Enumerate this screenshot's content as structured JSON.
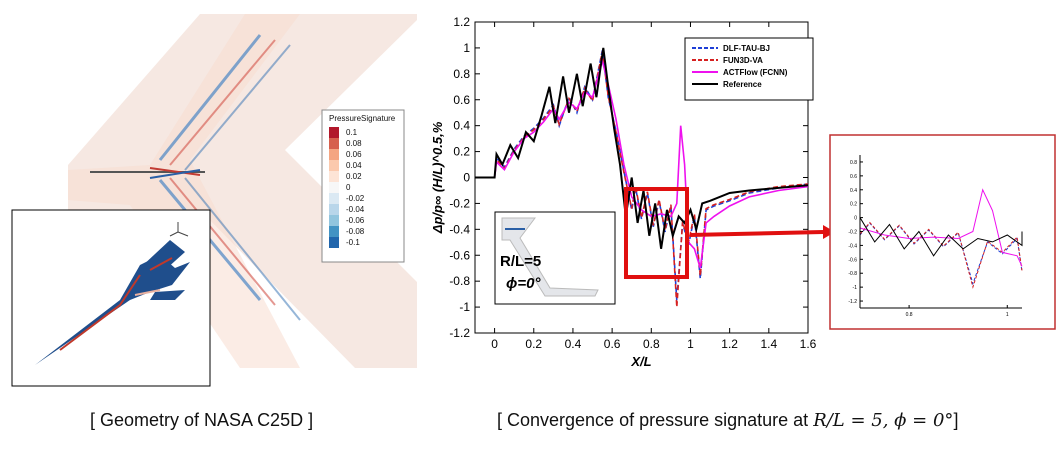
{
  "captions": {
    "left": "[ Geometry of NASA C25D ]",
    "right_prefix": "[ Convergence of pressure signature at ",
    "right_math": "R/L = 5, ϕ = 0°",
    "right_suffix": "]"
  },
  "contour_legend": {
    "title": "PressureSignature",
    "levels": [
      "0.1",
      "0.08",
      "0.06",
      "0.04",
      "0.02",
      "0",
      "-0.02",
      "-0.04",
      "-0.06",
      "-0.08",
      "-0.1"
    ],
    "colors": [
      "#b2182b",
      "#d6604d",
      "#f4a582",
      "#fbc9ad",
      "#fde4d6",
      "#f7f7f7",
      "#dbe9f3",
      "#b9d6ea",
      "#92c5de",
      "#4393c3",
      "#2166ac"
    ]
  },
  "inset_labels": {
    "rl": "R/L=5",
    "phi": "ϕ=0°"
  },
  "chart_data": [
    {
      "type": "line",
      "xlabel": "X/L",
      "ylabel": "Δp/p∞ (H/L)^0.5,%",
      "xlim": [
        -0.1,
        1.6
      ],
      "ylim": [
        -1.2,
        1.2
      ],
      "xticks": [
        "0",
        "0.2",
        "0.4",
        "0.6",
        "0.8",
        "1",
        "1.2",
        "1.4",
        "1.6"
      ],
      "yticks": [
        "1.2",
        "1",
        "0.8",
        "0.6",
        "0.4",
        "0.2",
        "0",
        "-0.2",
        "-0.4",
        "-0.6",
        "-0.8",
        "-1",
        "-1.2"
      ],
      "legend_position": "top-right",
      "series": [
        {
          "name": "DLF-TAU-BJ",
          "color": "#1f3fd6",
          "dash": "5,3",
          "points": [
            [
              -0.1,
              0
            ],
            [
              0,
              0
            ],
            [
              0.01,
              0.15
            ],
            [
              0.05,
              0.08
            ],
            [
              0.1,
              0.22
            ],
            [
              0.15,
              0.32
            ],
            [
              0.2,
              0.38
            ],
            [
              0.25,
              0.46
            ],
            [
              0.3,
              0.56
            ],
            [
              0.33,
              0.4
            ],
            [
              0.38,
              0.62
            ],
            [
              0.42,
              0.5
            ],
            [
              0.46,
              0.7
            ],
            [
              0.5,
              0.6
            ],
            [
              0.55,
              0.98
            ],
            [
              0.58,
              0.62
            ],
            [
              0.62,
              0.36
            ],
            [
              0.66,
              0.05
            ],
            [
              0.7,
              -0.25
            ],
            [
              0.72,
              -0.08
            ],
            [
              0.75,
              -0.32
            ],
            [
              0.78,
              -0.12
            ],
            [
              0.81,
              -0.38
            ],
            [
              0.84,
              -0.18
            ],
            [
              0.87,
              -0.42
            ],
            [
              0.9,
              -0.22
            ],
            [
              0.93,
              -0.95
            ],
            [
              0.96,
              -0.35
            ],
            [
              0.99,
              -0.52
            ],
            [
              1.02,
              -0.3
            ],
            [
              1.05,
              -0.78
            ],
            [
              1.08,
              -0.25
            ],
            [
              1.12,
              -0.22
            ],
            [
              1.2,
              -0.18
            ],
            [
              1.3,
              -0.12
            ],
            [
              1.45,
              -0.08
            ],
            [
              1.6,
              -0.05
            ]
          ]
        },
        {
          "name": "FUN3D-VA",
          "color": "#d62020",
          "dash": "5,3",
          "points": [
            [
              -0.1,
              0
            ],
            [
              0,
              0
            ],
            [
              0.01,
              0.14
            ],
            [
              0.05,
              0.07
            ],
            [
              0.1,
              0.21
            ],
            [
              0.15,
              0.31
            ],
            [
              0.2,
              0.37
            ],
            [
              0.25,
              0.45
            ],
            [
              0.3,
              0.55
            ],
            [
              0.33,
              0.41
            ],
            [
              0.38,
              0.61
            ],
            [
              0.42,
              0.51
            ],
            [
              0.46,
              0.69
            ],
            [
              0.5,
              0.59
            ],
            [
              0.55,
              0.97
            ],
            [
              0.58,
              0.63
            ],
            [
              0.62,
              0.35
            ],
            [
              0.66,
              0.04
            ],
            [
              0.7,
              -0.24
            ],
            [
              0.72,
              -0.07
            ],
            [
              0.75,
              -0.31
            ],
            [
              0.78,
              -0.11
            ],
            [
              0.81,
              -0.37
            ],
            [
              0.84,
              -0.17
            ],
            [
              0.87,
              -0.41
            ],
            [
              0.9,
              -0.21
            ],
            [
              0.93,
              -1.0
            ],
            [
              0.96,
              -0.34
            ],
            [
              0.99,
              -0.5
            ],
            [
              1.02,
              -0.28
            ],
            [
              1.05,
              -0.76
            ],
            [
              1.08,
              -0.24
            ],
            [
              1.12,
              -0.21
            ],
            [
              1.2,
              -0.17
            ],
            [
              1.3,
              -0.11
            ],
            [
              1.45,
              -0.07
            ],
            [
              1.6,
              -0.05
            ]
          ]
        },
        {
          "name": "ACTFlow (FCNN)",
          "color": "#ee11ee",
          "dash": "",
          "points": [
            [
              -0.1,
              0
            ],
            [
              0,
              0
            ],
            [
              0.01,
              0.12
            ],
            [
              0.05,
              0.06
            ],
            [
              0.1,
              0.2
            ],
            [
              0.15,
              0.3
            ],
            [
              0.2,
              0.35
            ],
            [
              0.25,
              0.43
            ],
            [
              0.3,
              0.53
            ],
            [
              0.33,
              0.45
            ],
            [
              0.38,
              0.58
            ],
            [
              0.42,
              0.53
            ],
            [
              0.46,
              0.66
            ],
            [
              0.5,
              0.62
            ],
            [
              0.55,
              0.9
            ],
            [
              0.58,
              0.72
            ],
            [
              0.62,
              0.45
            ],
            [
              0.66,
              0.1
            ],
            [
              0.7,
              -0.15
            ],
            [
              0.75,
              -0.25
            ],
            [
              0.8,
              -0.3
            ],
            [
              0.85,
              -0.28
            ],
            [
              0.9,
              -0.3
            ],
            [
              0.93,
              -0.2
            ],
            [
              0.95,
              0.4
            ],
            [
              0.97,
              0.1
            ],
            [
              0.99,
              -0.5
            ],
            [
              1.02,
              -0.55
            ],
            [
              1.05,
              -0.7
            ],
            [
              1.08,
              -0.35
            ],
            [
              1.12,
              -0.3
            ],
            [
              1.2,
              -0.22
            ],
            [
              1.3,
              -0.15
            ],
            [
              1.45,
              -0.1
            ],
            [
              1.6,
              -0.07
            ]
          ]
        },
        {
          "name": "Reference",
          "color": "#000000",
          "dash": "",
          "points": [
            [
              -0.1,
              0
            ],
            [
              0,
              0
            ],
            [
              0.01,
              0.18
            ],
            [
              0.04,
              0.1
            ],
            [
              0.08,
              0.25
            ],
            [
              0.12,
              0.15
            ],
            [
              0.16,
              0.35
            ],
            [
              0.2,
              0.28
            ],
            [
              0.24,
              0.48
            ],
            [
              0.28,
              0.7
            ],
            [
              0.31,
              0.42
            ],
            [
              0.35,
              0.78
            ],
            [
              0.38,
              0.5
            ],
            [
              0.42,
              0.8
            ],
            [
              0.45,
              0.55
            ],
            [
              0.49,
              0.88
            ],
            [
              0.52,
              0.62
            ],
            [
              0.555,
              1.0
            ],
            [
              0.58,
              0.7
            ],
            [
              0.61,
              0.38
            ],
            [
              0.64,
              0.1
            ],
            [
              0.67,
              -0.3
            ],
            [
              0.7,
              0.0
            ],
            [
              0.73,
              -0.35
            ],
            [
              0.76,
              -0.1
            ],
            [
              0.79,
              -0.45
            ],
            [
              0.82,
              -0.2
            ],
            [
              0.85,
              -0.55
            ],
            [
              0.88,
              -0.25
            ],
            [
              0.91,
              -0.45
            ],
            [
              0.94,
              -0.3
            ],
            [
              0.97,
              -0.35
            ],
            [
              1.0,
              -0.25
            ],
            [
              1.03,
              -0.4
            ],
            [
              1.06,
              -0.2
            ],
            [
              1.1,
              -0.18
            ],
            [
              1.2,
              -0.12
            ],
            [
              1.3,
              -0.1
            ],
            [
              1.45,
              -0.08
            ],
            [
              1.6,
              -0.06
            ]
          ]
        }
      ]
    },
    {
      "type": "line",
      "xticks": [
        "0.8",
        "1"
      ],
      "yticks": [
        "0.8",
        "0.6",
        "0.4",
        "0.2",
        "0",
        "-0.2",
        "-0.4",
        "-0.6",
        "-0.8",
        "-1",
        "-1.2"
      ],
      "xlim": [
        0.7,
        1.03
      ],
      "ylim": [
        -1.3,
        0.9
      ]
    }
  ]
}
